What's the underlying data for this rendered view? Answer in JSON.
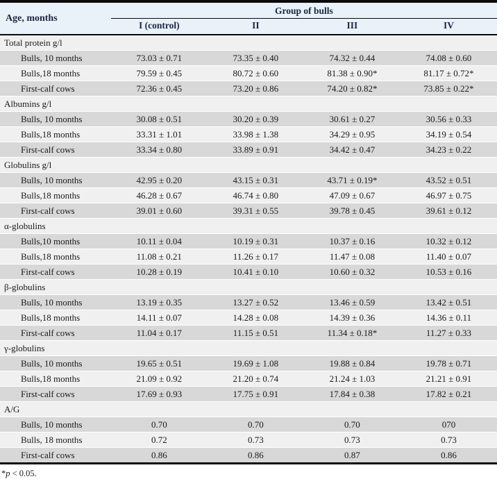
{
  "header": {
    "age_label": "Age, months",
    "group_label": "Group of bulls",
    "columns": [
      "I (control)",
      "II",
      "III",
      "IV"
    ]
  },
  "sections": [
    {
      "title": "Total protein g/l",
      "rows": [
        {
          "label": "Bulls, 10 months",
          "values": [
            "73.03 ± 0.71",
            "73.35 ± 0.40",
            "74.32 ± 0.44",
            "74.08 ± 0.60"
          ]
        },
        {
          "label": "Bulls,18 months",
          "values": [
            "79.59 ± 0.45",
            "80.72 ± 0.60",
            "81.38 ± 0.90*",
            "81.17 ± 0.72*"
          ]
        },
        {
          "label": "First-calf cows",
          "values": [
            "72.36 ± 0.45",
            "73.20 ± 0.86",
            "74.20 ± 0.82*",
            "73.85 ± 0.22*"
          ]
        }
      ]
    },
    {
      "title": "Albumins g/l",
      "rows": [
        {
          "label": "Bulls, 10 months",
          "values": [
            "30.08 ± 0.51",
            "30.20 ± 0.39",
            "30.61 ± 0.27",
            "30.56 ± 0.33"
          ]
        },
        {
          "label": "Bulls,18 months",
          "values": [
            "33.31 ± 1.01",
            "33.98 ± 1.38",
            "34.29 ± 0.95",
            "34.19 ± 0.54"
          ]
        },
        {
          "label": "First-calf cows",
          "values": [
            "33.34 ± 0.80",
            "33.89 ± 0.91",
            "34.42 ± 0.47",
            "34.23 ± 0.22"
          ]
        }
      ]
    },
    {
      "title": "Globulins g/l",
      "rows": [
        {
          "label": "Bulls, 10 months",
          "values": [
            "42.95 ± 0.20",
            "43.15 ± 0.31",
            "43.71 ± 0.19*",
            "43.52 ± 0.51"
          ]
        },
        {
          "label": "Bulls,18 months",
          "values": [
            "46.28 ± 0.67",
            "46.74 ± 0.80",
            "47.09 ± 0.67",
            "46.97 ± 0.75"
          ]
        },
        {
          "label": "First-calf cows",
          "values": [
            "39.01 ± 0.60",
            "39.31 ± 0.55",
            "39.78 ± 0.45",
            "39.61 ± 0.12"
          ]
        }
      ]
    },
    {
      "title": "α-globulins",
      "rows": [
        {
          "label": "Bulls,10 months",
          "values": [
            "10.11 ± 0.04",
            "10.19 ± 0.31",
            "10.37 ± 0.16",
            "10.32 ± 0.12"
          ]
        },
        {
          "label": "Bulls,18 months",
          "values": [
            "11.08 ± 0.21",
            "11.26 ± 0.17",
            "11.47 ± 0.08",
            "11.40 ± 0.07"
          ]
        },
        {
          "label": "First-calf cows",
          "values": [
            "10.28 ± 0.19",
            "10.41 ± 0.10",
            "10.60 ± 0.32",
            "10.53 ± 0.16"
          ]
        }
      ]
    },
    {
      "title": "β-globulins",
      "rows": [
        {
          "label": "Bulls, 10 months",
          "values": [
            "13.19 ± 0.35",
            "13.27 ± 0.52",
            "13.46 ± 0.59",
            "13.42 ± 0.51"
          ]
        },
        {
          "label": "Bulls,18 months",
          "values": [
            "14.11 ± 0.07",
            "14.28 ± 0.08",
            "14.39 ± 0.36",
            "14.36 ± 0.11"
          ]
        },
        {
          "label": "First-calf cows",
          "values": [
            "11.04 ± 0.17",
            "11.15 ± 0.51",
            "11.34 ± 0.18*",
            "11.27 ± 0.33"
          ]
        }
      ]
    },
    {
      "title": "γ-globulins",
      "rows": [
        {
          "label": "Bulls, 10 months",
          "values": [
            "19.65 ± 0.51",
            "19.69 ± 1.08",
            "19.88 ± 0.84",
            "19.78 ± 0.71"
          ]
        },
        {
          "label": "Bulls,18 months",
          "values": [
            "21.09 ± 0.92",
            "21.20 ± 0.74",
            "21.24 ± 1.03",
            "21.21 ± 0.91"
          ]
        },
        {
          "label": "First-calf cows",
          "values": [
            "17.69 ± 0.93",
            "17.75 ± 0.91",
            "17.84 ± 0.38",
            "17.82 ± 0.21"
          ]
        }
      ]
    },
    {
      "title": "A/G",
      "rows": [
        {
          "label": "Bulls, 10 months",
          "values": [
            "0.70",
            "0.70",
            "0.70",
            "070"
          ]
        },
        {
          "label": "Bulls, 18 months",
          "values": [
            "0.72",
            "0.73",
            "0.73",
            "0.73"
          ]
        },
        {
          "label": "First-calf cows",
          "values": [
            "0.86",
            "0.86",
            "0.87",
            "0.86"
          ]
        }
      ]
    }
  ],
  "footnote": {
    "star": "*",
    "p": "p",
    "rest": " < 0.05."
  },
  "colors": {
    "header_bg": "#e9f1f9",
    "row_gray": "#d8d8d8",
    "row_light": "#f0f0f0",
    "border": "#0a0a0a"
  }
}
